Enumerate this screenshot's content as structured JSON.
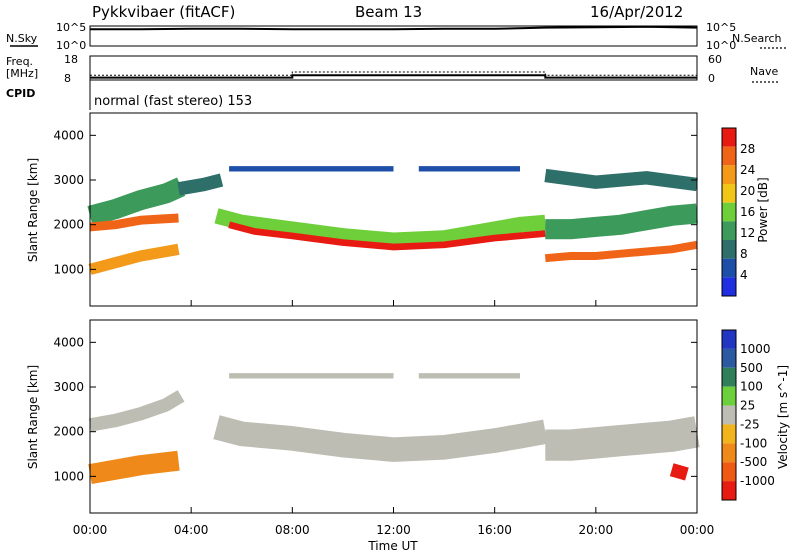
{
  "header": {
    "title": "Pykkvibaer (fitACF)",
    "beam": "Beam 13",
    "date": "16/Apr/2012"
  },
  "top_panels": {
    "nsky_label": "N.Sky",
    "nsearch_label": "N.Search",
    "noise_ticks": [
      "10^5",
      "10^0"
    ],
    "freq_label_1": "Freq.",
    "freq_label_2": "[MHz]",
    "freq_ticks": [
      "18",
      "8"
    ],
    "nave_label": "Nave",
    "nave_ticks": [
      "60",
      "0"
    ],
    "cpid_label": "CPID",
    "cpid_text": "normal (fast stereo) 153"
  },
  "colors": {
    "power_scale": [
      "#1f2ee0",
      "#1e4fa8",
      "#2f6f6a",
      "#3c9a5a",
      "#6fcf3a",
      "#f2c619",
      "#f39a1a",
      "#f06418",
      "#e81b12"
    ],
    "velocity_scale": [
      "#2236c4",
      "#2b5aa0",
      "#2e7f5a",
      "#6ccf3c",
      "#bdbdb3",
      "#f2b41c",
      "#ef8a1a",
      "#ee5a14",
      "#e81b12"
    ],
    "ground_scatter": "#bdbdb3"
  },
  "chart_data": [
    {
      "type": "heatmap",
      "panel": "power",
      "xlabel": "Time UT",
      "ylabel": "Slant Range [km]",
      "colorbar_label": "Power [dB]",
      "colorbar_ticks": [
        "28",
        "24",
        "20",
        "16",
        "12",
        "8",
        "4"
      ],
      "xlim": [
        0,
        24
      ],
      "ylim": [
        180,
        4500
      ],
      "y_ticks": [
        "4000",
        "3000",
        "2000",
        "1000"
      ],
      "x_ticks": [
        "00:00",
        "04:00",
        "08:00",
        "12:00",
        "16:00",
        "20:00",
        "00:00"
      ],
      "bands": [
        {
          "x": [
            0,
            1,
            2,
            3,
            3.6
          ],
          "y": [
            2200,
            2350,
            2550,
            2700,
            2850
          ],
          "thickness_km": 450,
          "power_db": 14
        },
        {
          "x": [
            0,
            1,
            2,
            3.5
          ],
          "y": [
            1950,
            2000,
            2100,
            2150
          ],
          "thickness_km": 200,
          "power_db": 24
        },
        {
          "x": [
            0,
            1,
            2,
            3.5
          ],
          "y": [
            1000,
            1150,
            1300,
            1450
          ],
          "thickness_km": 250,
          "power_db": 22
        },
        {
          "x": [
            3.5,
            4.5,
            5.2
          ],
          "y": [
            2800,
            2900,
            3000
          ],
          "thickness_km": 300,
          "power_db": 10
        },
        {
          "x": [
            5,
            6,
            8,
            10,
            12,
            14,
            16,
            17,
            18
          ],
          "y": [
            2200,
            2050,
            1900,
            1750,
            1650,
            1700,
            1900,
            2000,
            2050
          ],
          "thickness_km": 350,
          "power_db": 16
        },
        {
          "x": [
            5.5,
            6.5,
            8,
            10,
            12,
            14,
            16,
            18
          ],
          "y": [
            2000,
            1850,
            1750,
            1600,
            1500,
            1550,
            1700,
            1800
          ],
          "thickness_km": 150,
          "power_db": 27
        },
        {
          "x": [
            18,
            19,
            20,
            21,
            22,
            23,
            24
          ],
          "y": [
            1900,
            1900,
            1950,
            2000,
            2100,
            2200,
            2250
          ],
          "thickness_km": 450,
          "power_db": 14
        },
        {
          "x": [
            18,
            19,
            20,
            21,
            22,
            23,
            24
          ],
          "y": [
            1250,
            1300,
            1300,
            1350,
            1400,
            1450,
            1550
          ],
          "thickness_km": 180,
          "power_db": 25
        },
        {
          "x": [
            18,
            20,
            22,
            24
          ],
          "y": [
            3100,
            2950,
            3050,
            2900
          ],
          "thickness_km": 300,
          "power_db": 10
        },
        {
          "x": [
            5.5,
            8,
            10,
            12
          ],
          "y": [
            3250,
            3250,
            3250,
            3250
          ],
          "thickness_km": 120,
          "power_db": 6
        },
        {
          "x": [
            13,
            15,
            16,
            17
          ],
          "y": [
            3250,
            3250,
            3250,
            3250
          ],
          "thickness_km": 120,
          "power_db": 6
        }
      ]
    },
    {
      "type": "heatmap",
      "panel": "velocity",
      "xlabel": "Time UT",
      "ylabel": "Slant Range [km]",
      "colorbar_label": "Velocity [m s^-1]",
      "colorbar_ticks": [
        "1000",
        "500",
        "100",
        "25",
        "-25",
        "-100",
        "-500",
        "-1000"
      ],
      "xlim": [
        0,
        24
      ],
      "ylim": [
        180,
        4500
      ],
      "y_ticks": [
        "4000",
        "3000",
        "2000",
        "1000"
      ],
      "x_ticks": [
        "00:00",
        "04:00",
        "08:00",
        "12:00",
        "16:00",
        "20:00",
        "00:00"
      ],
      "bands": [
        {
          "x": [
            0,
            1,
            2,
            3,
            3.6
          ],
          "y": [
            2150,
            2250,
            2400,
            2600,
            2800
          ],
          "thickness_km": 300,
          "velocity": 0
        },
        {
          "x": [
            0,
            1,
            2,
            3.5
          ],
          "y": [
            1050,
            1150,
            1250,
            1350
          ],
          "thickness_km": 450,
          "velocity": -300
        },
        {
          "x": [
            5,
            6,
            8,
            10,
            12,
            14,
            16,
            17,
            18
          ],
          "y": [
            2100,
            1950,
            1850,
            1700,
            1600,
            1650,
            1800,
            1900,
            2000
          ],
          "thickness_km": 550,
          "velocity": 0
        },
        {
          "x": [
            18,
            19,
            20,
            21,
            22,
            23,
            24
          ],
          "y": [
            1700,
            1700,
            1750,
            1800,
            1850,
            1900,
            2000
          ],
          "thickness_km": 700,
          "velocity": 0
        },
        {
          "x": [
            23,
            23.6
          ],
          "y": [
            1150,
            1050
          ],
          "thickness_km": 300,
          "velocity": -800
        },
        {
          "x": [
            5.5,
            8,
            10,
            12
          ],
          "y": [
            3250,
            3250,
            3250,
            3250
          ],
          "thickness_km": 120,
          "velocity": 0
        },
        {
          "x": [
            13,
            15,
            16,
            17
          ],
          "y": [
            3250,
            3250,
            3250,
            3250
          ],
          "thickness_km": 120,
          "velocity": 0
        }
      ]
    }
  ],
  "time_series": {
    "x": [
      0,
      2,
      4,
      6,
      8,
      10,
      12,
      14,
      16,
      18,
      20,
      22,
      24
    ],
    "nsky_log10": [
      4.2,
      4.2,
      4.3,
      4.3,
      4.2,
      4.2,
      4.2,
      4.3,
      4.3,
      4.6,
      4.7,
      4.8,
      4.6
    ],
    "freq_mhz": [
      9,
      9,
      9,
      9,
      10,
      10,
      10,
      10,
      10,
      9,
      9,
      9,
      9
    ],
    "nave": [
      12,
      12,
      12,
      12,
      20,
      20,
      20,
      20,
      20,
      12,
      12,
      12,
      12
    ]
  }
}
